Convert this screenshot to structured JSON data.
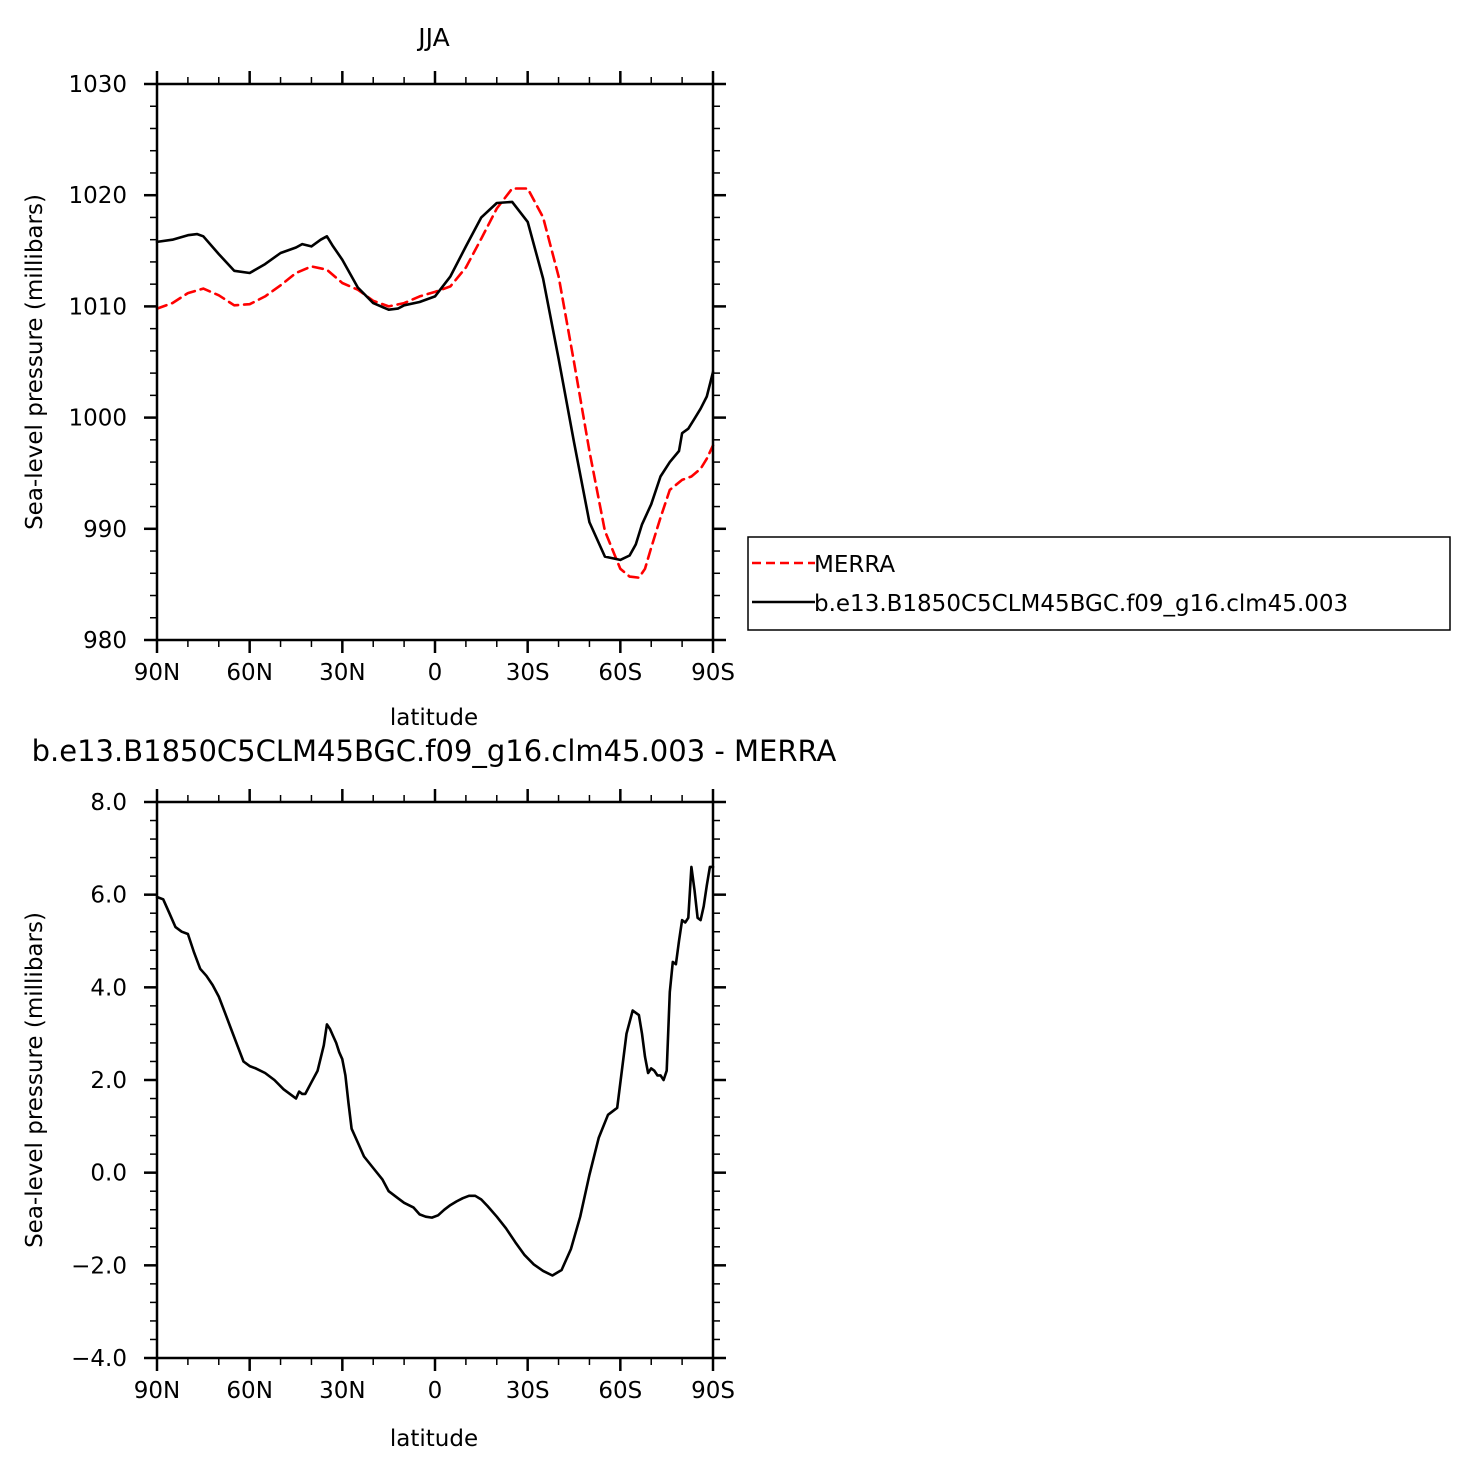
{
  "chart_data": [
    {
      "type": "line",
      "title": "JJA",
      "xlabel": "latitude",
      "ylabel": "Sea-level pressure (millibars)",
      "xlim": [
        90,
        -90
      ],
      "ylim": [
        980,
        1030
      ],
      "x_ticks": [
        {
          "value": 90,
          "label": "90N"
        },
        {
          "value": 60,
          "label": "60N"
        },
        {
          "value": 30,
          "label": "30N"
        },
        {
          "value": 0,
          "label": "0"
        },
        {
          "value": -30,
          "label": "30S"
        },
        {
          "value": -60,
          "label": "60S"
        },
        {
          "value": -90,
          "label": "90S"
        }
      ],
      "y_ticks": [
        {
          "value": 1030,
          "label": "1030"
        },
        {
          "value": 1020,
          "label": "1020"
        },
        {
          "value": 1010,
          "label": "1010"
        },
        {
          "value": 1000,
          "label": "1000"
        },
        {
          "value": 990,
          "label": "990"
        },
        {
          "value": 980,
          "label": "980"
        }
      ],
      "legend_position": "right",
      "series": [
        {
          "name": "MERRA",
          "color": "#ff0000",
          "dash": "dashed",
          "x": [
            90,
            85,
            80,
            75,
            70,
            65,
            60,
            55,
            50,
            45,
            40,
            35,
            30,
            25,
            20,
            15,
            10,
            5,
            0,
            -5,
            -10,
            -15,
            -20,
            -25,
            -30,
            -35,
            -40,
            -45,
            -50,
            -55,
            -60,
            -63,
            -66,
            -68,
            -70,
            -73,
            -76,
            -80,
            -83,
            -86,
            -88,
            -90
          ],
          "y": [
            1009.8,
            1010.3,
            1011.2,
            1011.6,
            1011.0,
            1010.1,
            1010.2,
            1010.9,
            1011.9,
            1013.0,
            1013.6,
            1013.3,
            1012.1,
            1011.5,
            1010.5,
            1010.0,
            1010.3,
            1010.9,
            1011.3,
            1011.8,
            1013.5,
            1016.1,
            1018.8,
            1020.6,
            1020.6,
            1018.0,
            1012.7,
            1005.0,
            997.0,
            989.8,
            986.4,
            985.7,
            985.6,
            986.4,
            988.3,
            991.0,
            993.5,
            994.4,
            994.7,
            995.4,
            996.3,
            997.5
          ]
        },
        {
          "name": "b.e13.B1850C5CLM45BGC.f09_g16.clm45.003",
          "color": "#000000",
          "dash": "solid",
          "x": [
            90,
            85,
            80,
            77,
            75,
            70,
            65,
            60,
            55,
            50,
            45,
            43,
            40,
            37,
            35,
            33,
            30,
            25,
            20,
            15,
            12,
            10,
            5,
            0,
            -5,
            -10,
            -15,
            -20,
            -25,
            -30,
            -35,
            -40,
            -45,
            -50,
            -55,
            -60,
            -63,
            -65,
            -67,
            -70,
            -73,
            -76,
            -79,
            -80,
            -82,
            -84,
            -86,
            -88,
            -90
          ],
          "y": [
            1015.8,
            1016.0,
            1016.4,
            1016.5,
            1016.3,
            1014.7,
            1013.2,
            1013.0,
            1013.8,
            1014.8,
            1015.3,
            1015.6,
            1015.4,
            1016.0,
            1016.3,
            1015.4,
            1014.2,
            1011.7,
            1010.3,
            1009.7,
            1009.8,
            1010.1,
            1010.4,
            1010.9,
            1012.7,
            1015.4,
            1018.0,
            1019.3,
            1019.4,
            1017.6,
            1012.5,
            1005.3,
            997.8,
            990.6,
            987.5,
            987.2,
            987.6,
            988.6,
            990.4,
            992.2,
            994.7,
            996.0,
            997.0,
            998.6,
            999.0,
            999.9,
            1000.8,
            1001.9,
            1004.1
          ]
        }
      ]
    },
    {
      "type": "line",
      "title": "b.e13.B1850C5CLM45BGC.f09_g16.clm45.003 - MERRA",
      "xlabel": "latitude",
      "ylabel": "Sea-level pressure (millibars)",
      "xlim": [
        90,
        -90
      ],
      "ylim": [
        -4,
        8
      ],
      "x_ticks": [
        {
          "value": 90,
          "label": "90N"
        },
        {
          "value": 60,
          "label": "60N"
        },
        {
          "value": 30,
          "label": "30N"
        },
        {
          "value": 0,
          "label": "0"
        },
        {
          "value": -30,
          "label": "30S"
        },
        {
          "value": -60,
          "label": "60S"
        },
        {
          "value": -90,
          "label": "90S"
        }
      ],
      "y_ticks": [
        {
          "value": 8,
          "label": "8.0"
        },
        {
          "value": 6,
          "label": "6.0"
        },
        {
          "value": 4,
          "label": "4.0"
        },
        {
          "value": 2,
          "label": "2.0"
        },
        {
          "value": 0,
          "label": "0.0"
        },
        {
          "value": -2,
          "label": "−2.0"
        },
        {
          "value": -4,
          "label": "−4.0"
        }
      ],
      "series": [
        {
          "color": "#000000",
          "dash": "solid",
          "x": [
            90,
            88,
            86,
            84,
            82,
            80,
            78,
            76,
            74,
            72,
            70,
            68,
            66,
            64,
            62,
            60,
            58,
            55,
            52,
            49,
            46,
            45,
            44,
            43,
            42,
            40,
            38,
            36,
            35,
            34,
            33,
            32,
            31,
            30,
            29,
            28,
            27,
            25,
            23,
            20,
            17,
            15,
            12,
            10,
            7,
            5,
            3,
            1,
            -1,
            -3,
            -5,
            -7,
            -9,
            -11,
            -13,
            -15,
            -17,
            -20,
            -23,
            -26,
            -29,
            -32,
            -35,
            -38,
            -41,
            -44,
            -47,
            -50,
            -53,
            -56,
            -59,
            -62,
            -64,
            -66,
            -67,
            -68,
            -69,
            -70,
            -71,
            -72,
            -73,
            -74,
            -75,
            -76,
            -77,
            -78,
            -79,
            -80,
            -81,
            -82,
            -83,
            -84,
            -85,
            -86,
            -87,
            -88,
            -89,
            -90
          ],
          "y": [
            5.95,
            5.9,
            5.6,
            5.3,
            5.2,
            5.15,
            4.75,
            4.4,
            4.25,
            4.05,
            3.8,
            3.45,
            3.1,
            2.75,
            2.4,
            2.3,
            2.25,
            2.15,
            2.0,
            1.8,
            1.65,
            1.6,
            1.75,
            1.7,
            1.7,
            1.95,
            2.2,
            2.75,
            3.2,
            3.1,
            2.95,
            2.8,
            2.6,
            2.45,
            2.1,
            1.5,
            0.95,
            0.65,
            0.35,
            0.1,
            -0.15,
            -0.4,
            -0.55,
            -0.65,
            -0.75,
            -0.9,
            -0.95,
            -0.97,
            -0.92,
            -0.8,
            -0.7,
            -0.62,
            -0.55,
            -0.5,
            -0.5,
            -0.58,
            -0.72,
            -0.95,
            -1.2,
            -1.5,
            -1.78,
            -1.98,
            -2.12,
            -2.22,
            -2.1,
            -1.65,
            -0.95,
            -0.05,
            0.75,
            1.25,
            1.4,
            3.0,
            3.5,
            3.4,
            3.0,
            2.5,
            2.15,
            2.25,
            2.2,
            2.1,
            2.1,
            2.0,
            2.2,
            3.9,
            4.55,
            4.5,
            5.0,
            5.45,
            5.4,
            5.5,
            6.6,
            6.1,
            5.5,
            5.45,
            5.75,
            6.2,
            6.6,
            6.6
          ]
        }
      ]
    }
  ]
}
